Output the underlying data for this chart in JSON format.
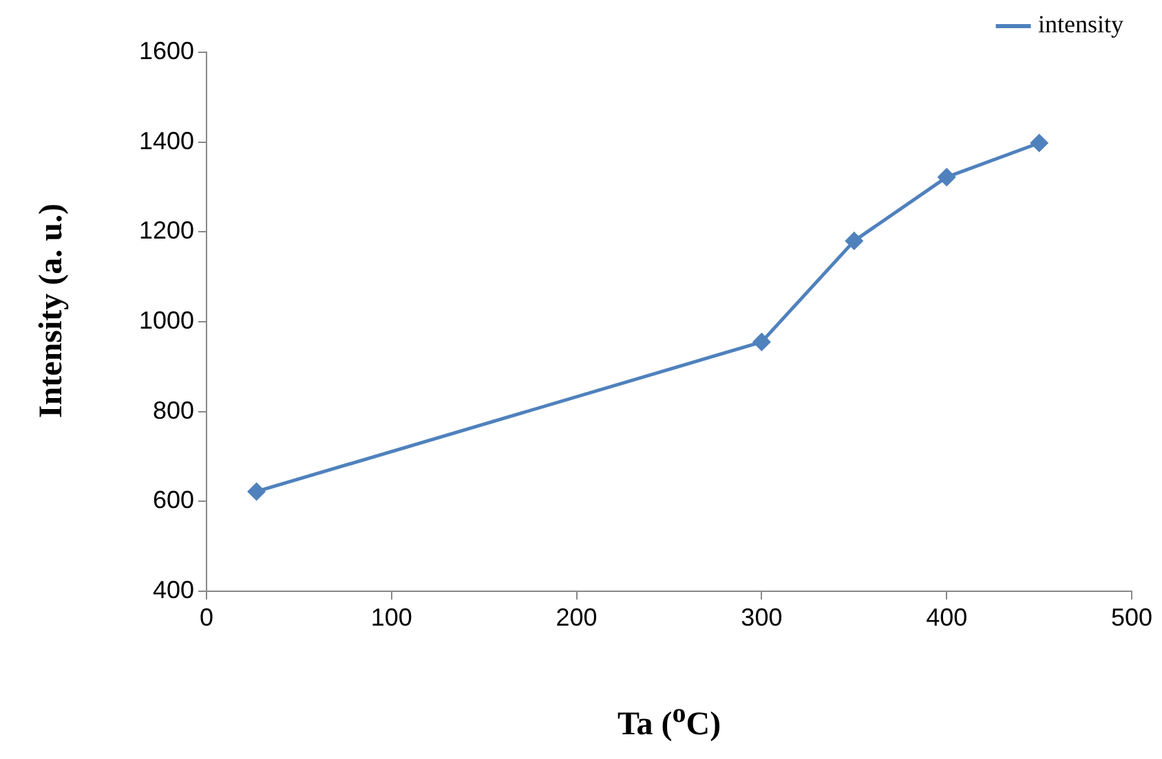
{
  "chart_data": {
    "type": "line",
    "xlabel": "Ta ($^{o}$C)",
    "ylabel": "Intensity (a. u.)",
    "x": [
      27,
      300,
      350,
      400,
      450
    ],
    "series": [
      {
        "name": "intensity",
        "color": "#4f81bd",
        "values": [
          622,
          955,
          1180,
          1322,
          1398
        ]
      }
    ],
    "xlim": [
      0,
      500
    ],
    "xticks": [
      0,
      100,
      200,
      300,
      400,
      500
    ],
    "ylim": [
      400,
      1600
    ],
    "yticks": [
      400,
      600,
      800,
      1000,
      1200,
      1400,
      1600
    ],
    "grid": false,
    "legend": "top right",
    "marker": "diamond",
    "line_style": "solid"
  }
}
